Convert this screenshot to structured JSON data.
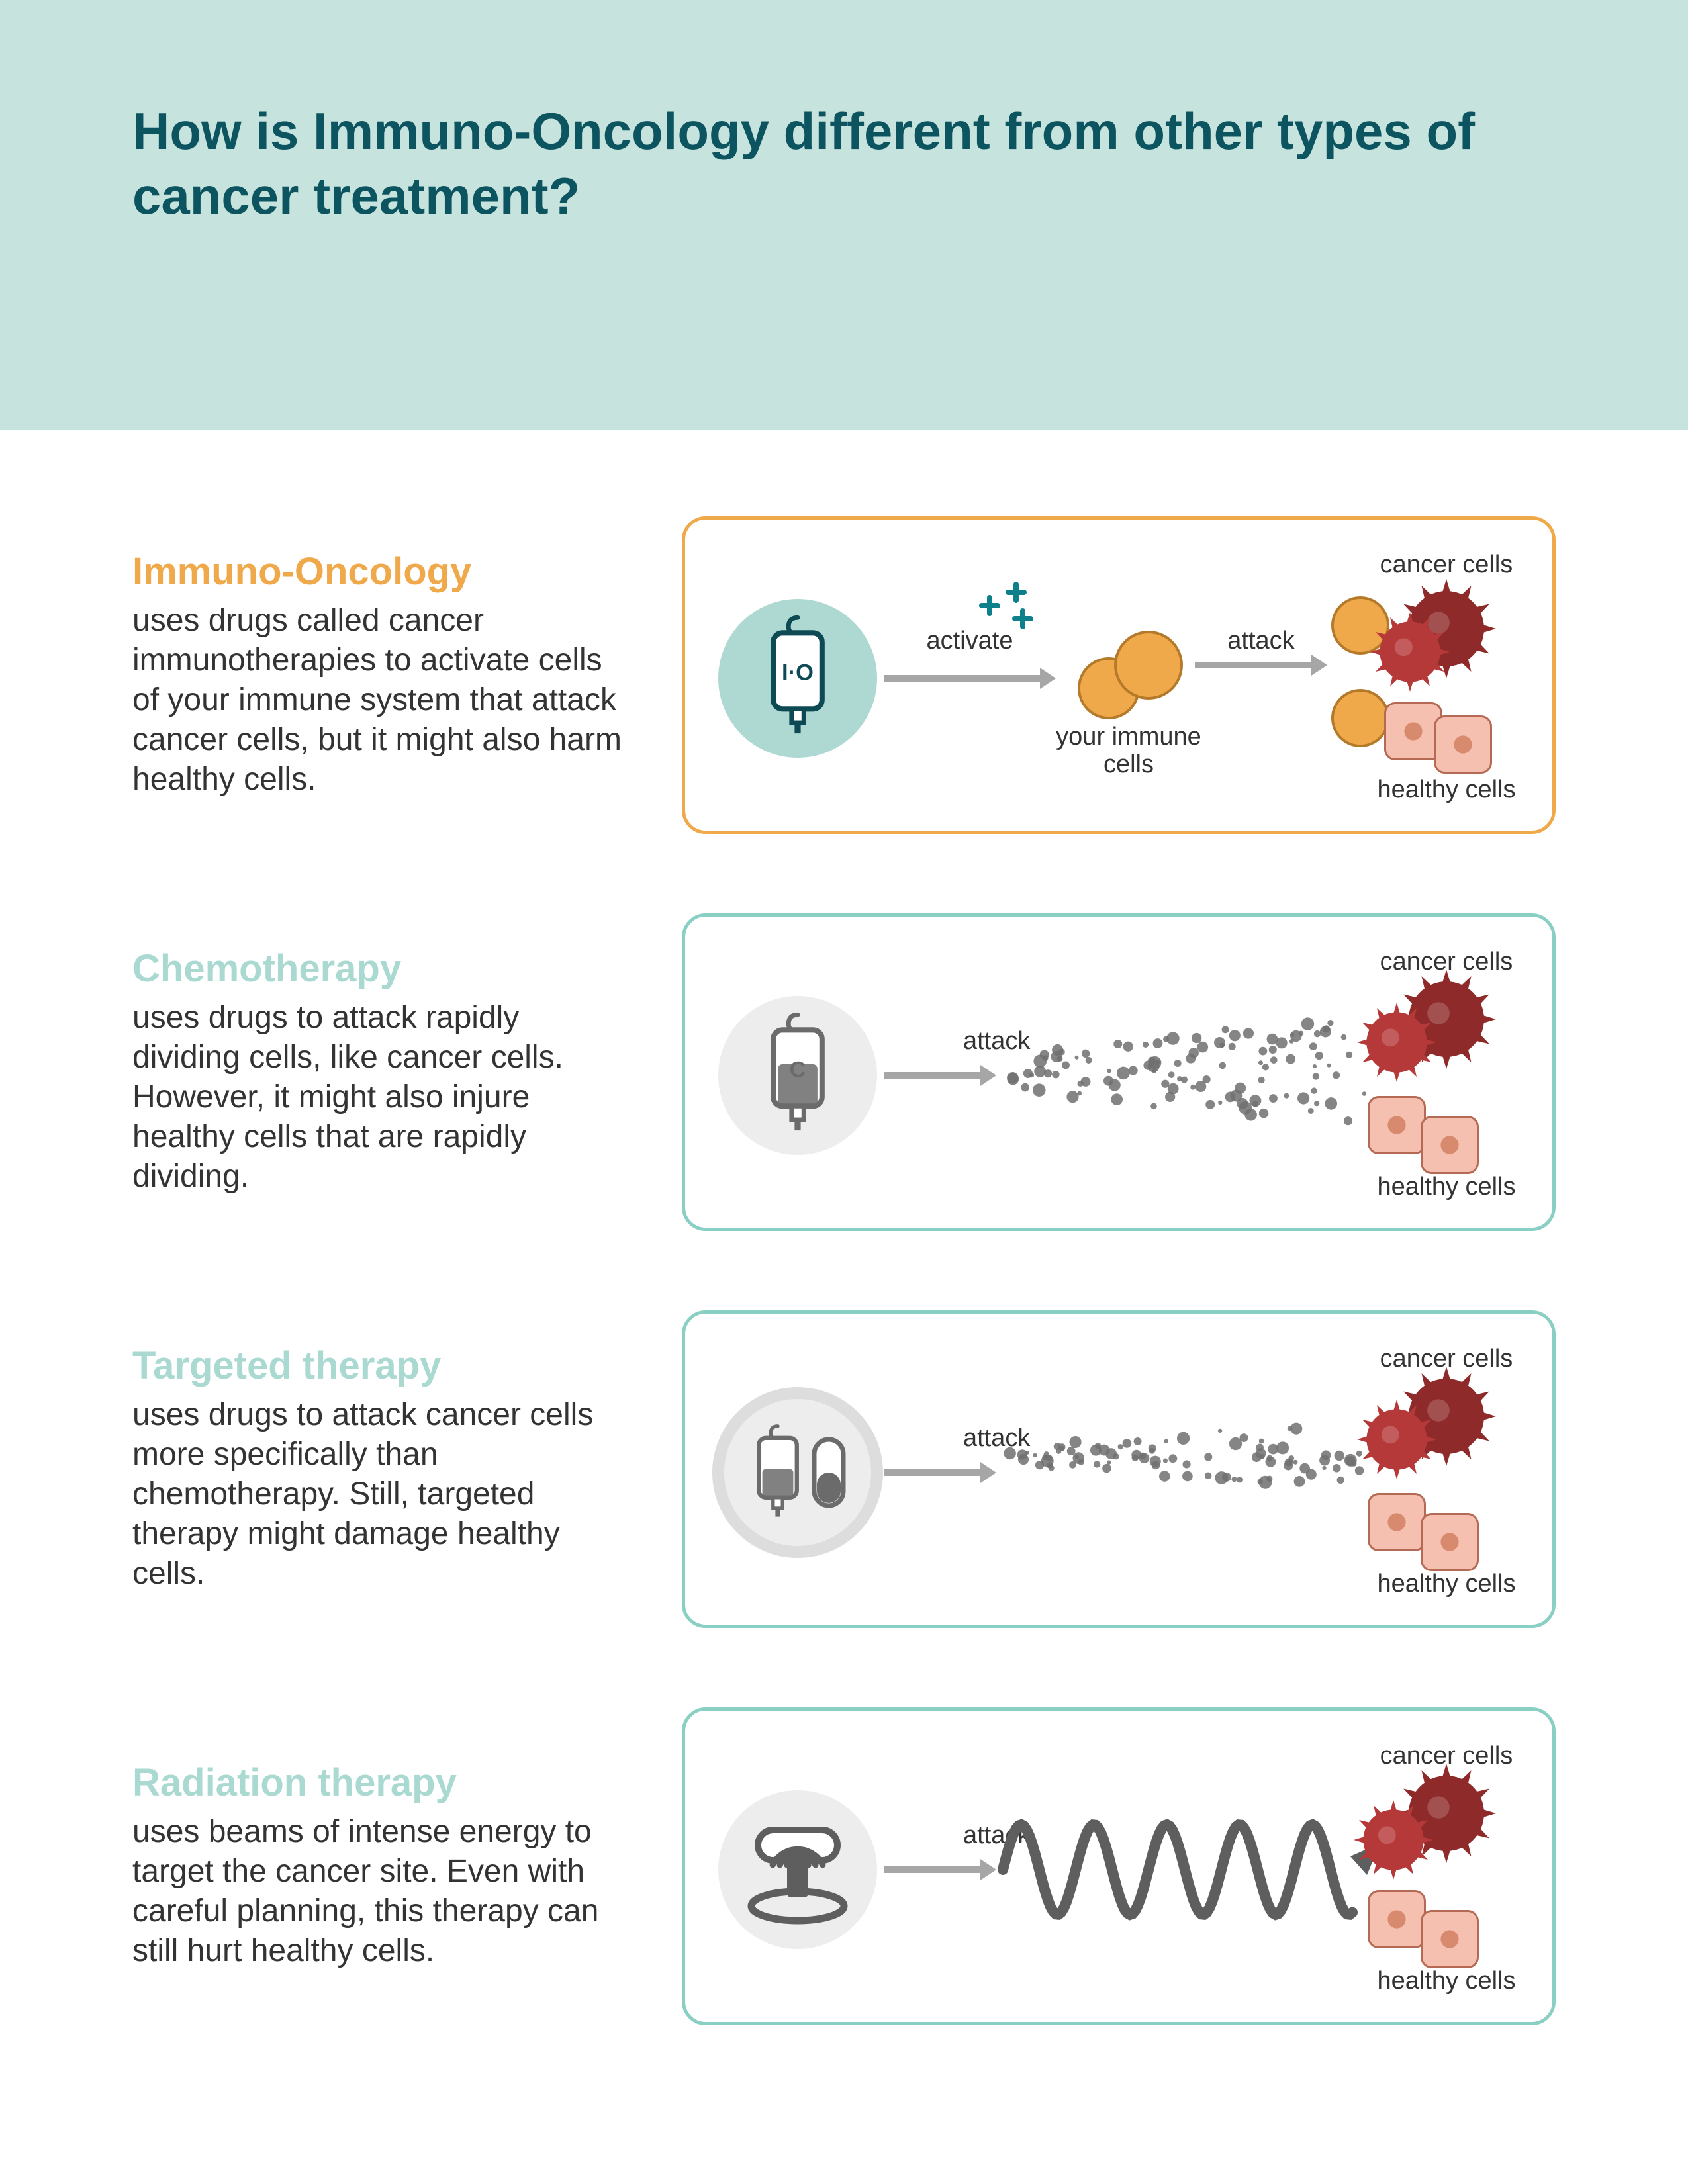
{
  "page": {
    "title": "How is Immuno-Oncology different from other types of cancer treatment?",
    "header_bg": "#c6e3de",
    "title_color": "#0d5461"
  },
  "common_labels": {
    "cancer_cells": "cancer cells",
    "healthy_cells": "healthy cells",
    "immune_cells": "your immune\ncells",
    "activate": "activate",
    "attack": "attack"
  },
  "colors": {
    "cancer_cell_dark": "#8e2a2a",
    "cancer_cell_light": "#b63939",
    "healthy_cell_fill": "#f5c0af",
    "healthy_cell_stroke": "#b56a55",
    "healthy_cell_dot": "#d88a6f",
    "immune_cell_fill": "#f0a94a",
    "immune_cell_stroke": "#b47a2a",
    "arrow_gray": "#a6a6a6",
    "particle_gray": "#707070",
    "wave_gray": "#5e5e5e",
    "plus_teal": "#0d808c",
    "text": "#333333"
  },
  "treatments": [
    {
      "id": "immuno-oncology",
      "title": "Immuno-Oncology",
      "title_color": "#f0a94a",
      "description": "uses drugs called cancer immunotherapies to activate cells of your immune system that attack cancer cells, but it might also harm healthy cells.",
      "border_color": "#f0a94a",
      "icon_bg": "#aed9d3",
      "icon_stroke": "#0e4a54",
      "icon_label": "I·O",
      "diagram_type": "immuno"
    },
    {
      "id": "chemotherapy",
      "title": "Chemotherapy",
      "title_color": "#a9d9d1",
      "description": "uses drugs to attack rapidly dividing cells, like cancer cells. However, it might also injure healthy cells that are rapidly dividing.",
      "border_color": "#89cfc4",
      "icon_bg": "#ededed",
      "icon_stroke": "#6b6b6b",
      "icon_label": "C",
      "diagram_type": "chemo"
    },
    {
      "id": "targeted-therapy",
      "title": "Targeted therapy",
      "title_color": "#a9d9d1",
      "description": "uses drugs to attack cancer cells more specifically than chemotherapy. Still, targeted therapy might damage healthy cells.",
      "border_color": "#89cfc4",
      "icon_bg": "#ededed",
      "icon_stroke": "#6b6b6b",
      "diagram_type": "targeted"
    },
    {
      "id": "radiation-therapy",
      "title": "Radiation therapy",
      "title_color": "#a9d9d1",
      "description": "uses beams of intense energy to target the cancer site. Even with careful planning, this therapy can still hurt healthy cells.",
      "border_color": "#89cfc4",
      "icon_bg": "#ededed",
      "icon_stroke": "#6b6b6b",
      "diagram_type": "radiation"
    }
  ]
}
